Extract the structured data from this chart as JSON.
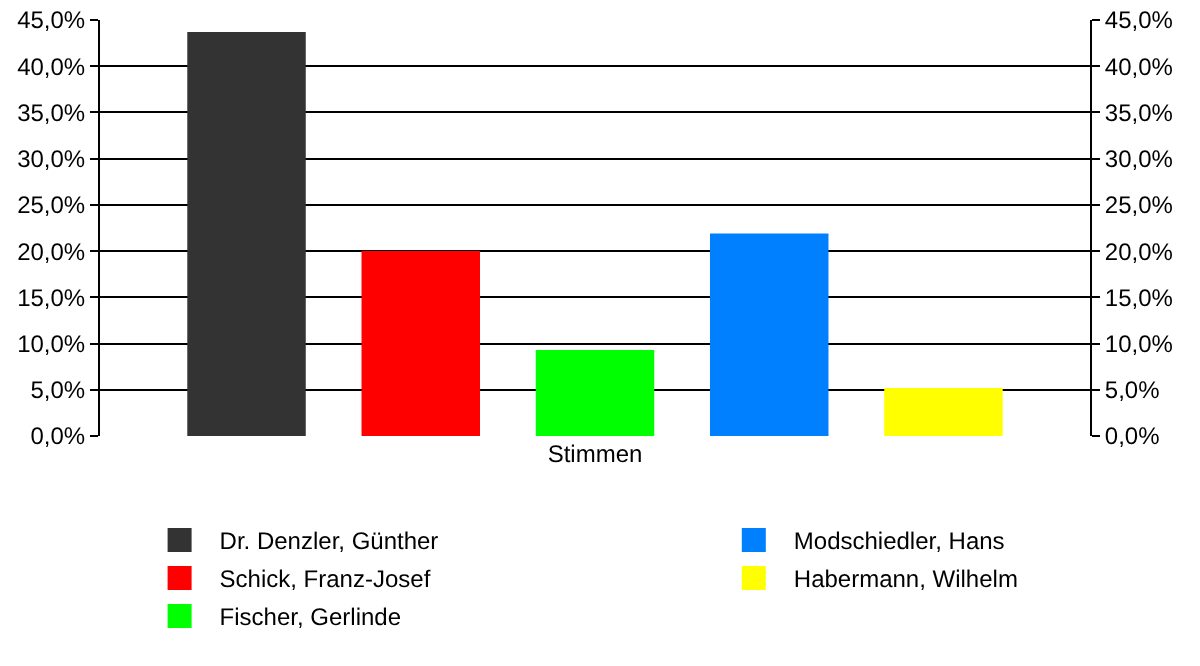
{
  "chart_data": {
    "type": "bar",
    "categories": [
      "Stimmen"
    ],
    "series": [
      {
        "name": "Dr. Denzler, Günther",
        "color": "#333333",
        "values": [
          43.7
        ]
      },
      {
        "name": "Schick, Franz-Josef",
        "color": "#ff0000",
        "values": [
          20.0
        ]
      },
      {
        "name": "Fischer, Gerlinde",
        "color": "#00ff00",
        "values": [
          9.3
        ]
      },
      {
        "name": "Modschiedler, Hans",
        "color": "#0080ff",
        "values": [
          21.9
        ]
      },
      {
        "name": "Habermann, Wilhelm",
        "color": "#ffff00",
        "values": [
          5.2
        ]
      }
    ],
    "ylim": [
      0,
      45
    ],
    "yticks": [
      {
        "value": 0,
        "label": "0,0%"
      },
      {
        "value": 5,
        "label": "5,0%"
      },
      {
        "value": 10,
        "label": "10,0%"
      },
      {
        "value": 15,
        "label": "15,0%"
      },
      {
        "value": 20,
        "label": "20,0%"
      },
      {
        "value": 25,
        "label": "25,0%"
      },
      {
        "value": 30,
        "label": "30,0%"
      },
      {
        "value": 35,
        "label": "35,0%"
      },
      {
        "value": 40,
        "label": "40,0%"
      },
      {
        "value": 45,
        "label": "45,0%"
      }
    ],
    "grid": "y",
    "legend": "bottom"
  }
}
